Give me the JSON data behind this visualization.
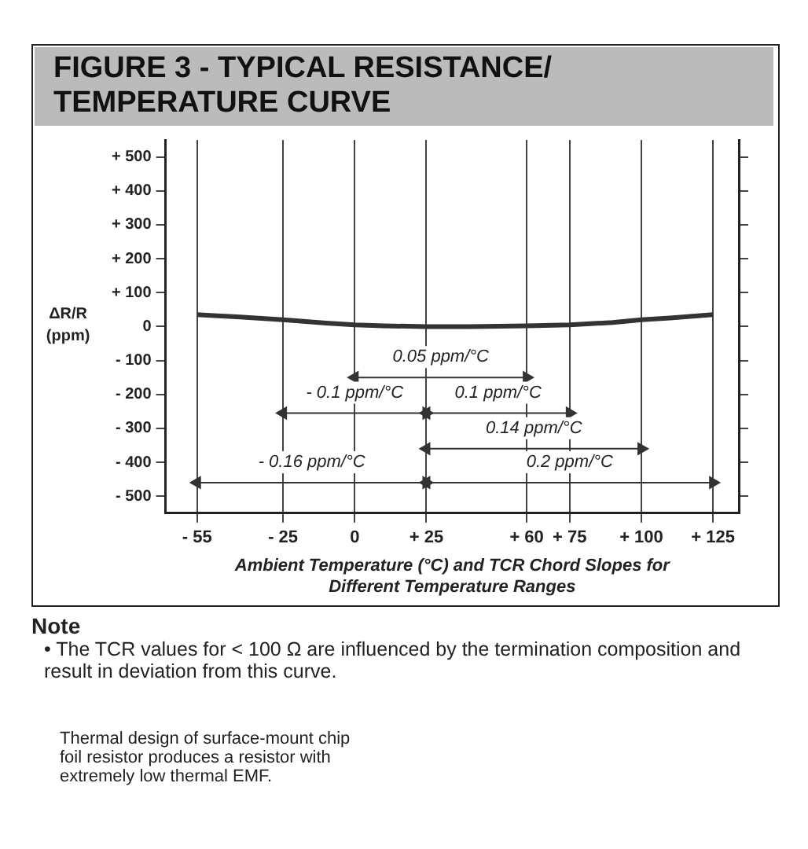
{
  "chart_data": {
    "type": "line",
    "title": "FIGURE 3 - TYPICAL RESISTANCE/\nTEMPERATURE CURVE",
    "xlabel": "Ambient Temperature (°C) and TCR Chord Slopes for\nDifferent Temperature Ranges",
    "ylabel": "ΔR/R (ppm)",
    "x": [
      -55,
      -40,
      -25,
      -10,
      0,
      10,
      25,
      40,
      60,
      75,
      90,
      100,
      110,
      125
    ],
    "series": [
      {
        "color": "#333333",
        "values": [
          35,
          28,
          20,
          10,
          5,
          2,
          0,
          0,
          2,
          5,
          12,
          20,
          25,
          35
        ]
      },
      {
        "color": "#333333",
        "x": [
          0,
          60
        ],
        "values": [
          -150,
          -150
        ],
        "marker": "triangle"
      },
      {
        "color": "#333333",
        "x": [
          -25,
          25
        ],
        "values": [
          -255,
          -255
        ],
        "marker": "triangle"
      },
      {
        "color": "#333333",
        "x": [
          25,
          75
        ],
        "values": [
          -255,
          -255
        ],
        "marker": "triangle"
      },
      {
        "color": "#333333",
        "x": [
          25,
          100
        ],
        "values": [
          -360,
          -360
        ],
        "marker": "triangle"
      },
      {
        "color": "#333333",
        "x": [
          -55,
          25
        ],
        "values": [
          -460,
          -460
        ],
        "marker": "triangle"
      },
      {
        "color": "#333333",
        "x": [
          25,
          125
        ],
        "values": [
          -460,
          -460
        ],
        "marker": "triangle"
      }
    ],
    "xlim": [
      -66,
      134
    ],
    "xticks": [
      {
        "value": -55,
        "label": "- 55"
      },
      {
        "value": -25,
        "label": "- 25"
      },
      0,
      {
        "value": 25,
        "label": "+ 25"
      },
      {
        "value": 60,
        "label": "+ 60"
      },
      {
        "value": 75,
        "label": "+ 75"
      },
      {
        "value": 100,
        "label": "+ 100"
      },
      {
        "value": 125,
        "label": "+ 125"
      }
    ],
    "ylim": [
      -550,
      550
    ],
    "yticks": [
      {
        "value": -500,
        "label": "- 500"
      },
      {
        "value": -400,
        "label": "- 400"
      },
      {
        "value": -300,
        "label": "- 300"
      },
      {
        "value": -200,
        "label": "- 200"
      },
      {
        "value": -100,
        "label": "- 100"
      },
      0,
      {
        "value": 100,
        "label": "+ 100"
      },
      {
        "value": 200,
        "label": "+ 200"
      },
      {
        "value": 300,
        "label": "+ 300"
      },
      {
        "value": 400,
        "label": "+ 400"
      },
      {
        "value": 500,
        "label": "+ 500"
      }
    ],
    "grid": "x",
    "legend": false,
    "marker": "none",
    "line_style": "solid",
    "annotations": [
      {
        "text": "0.05 ppm/°C",
        "x": 30,
        "y": -150
      },
      {
        "text": "- 0.1 ppm/°C",
        "x": 0,
        "y": -255
      },
      {
        "text": "0.1 ppm/°C",
        "x": 50,
        "y": -255
      },
      {
        "text": "0.14 ppm/°C",
        "x": 62.5,
        "y": -360
      },
      {
        "text": "- 0.16 ppm/°C",
        "x": -15,
        "y": -460
      },
      {
        "text": "0.2 ppm/°C",
        "x": 75,
        "y": -460
      },
      "Note",
      "• The TCR values for < 100 Ω are influenced by the termination composition and result in deviation from this curve.",
      "Thermal design of surface-mount chip foil resistor produces a resistor with extremely low thermal EMF."
    ]
  }
}
